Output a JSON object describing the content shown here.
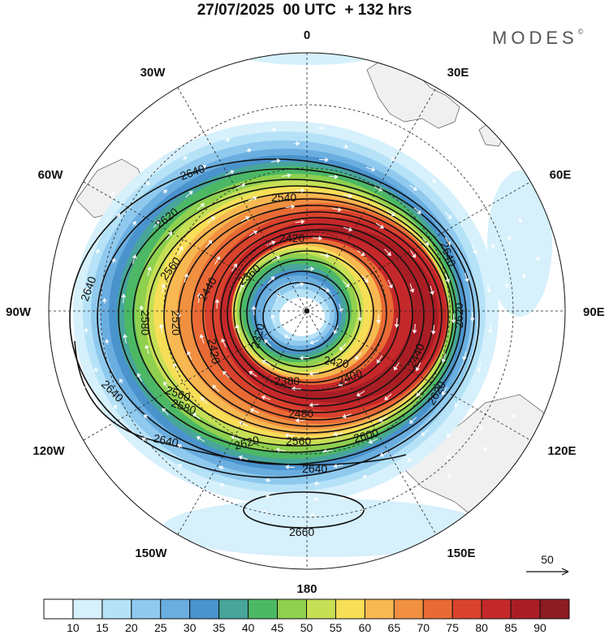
{
  "header": {
    "title": "27/07/2025  00 UTC  + 132 hrs",
    "brand": "MODES",
    "brand_mark": "©"
  },
  "map": {
    "projection": "south-polar-stereographic",
    "longitude_labels": {
      "top": "0",
      "top_right": "30E",
      "upper_right": "60E",
      "right": "90E",
      "lower_right": "120E",
      "bottom_right": "150E",
      "bottom": "180",
      "bottom_left": "150W",
      "lower_left": "120W",
      "left": "90W",
      "upper_left": "60W",
      "top_left": "30W"
    },
    "contour_labels": [
      "2640",
      "2620",
      "2560",
      "2540",
      "2420",
      "2360",
      "2440",
      "2320",
      "2420",
      "2580",
      "2520",
      "2560",
      "2640",
      "2420",
      "2640",
      "2620",
      "2400",
      "2440",
      "2380",
      "2480",
      "2560",
      "2600",
      "2620",
      "2640",
      "2580",
      "2620",
      "2640",
      "2660"
    ],
    "reference_vector": {
      "label": "50"
    }
  },
  "colorbar": {
    "labels": [
      "10",
      "15",
      "20",
      "25",
      "30",
      "35",
      "40",
      "45",
      "50",
      "55",
      "60",
      "65",
      "70",
      "75",
      "80",
      "85",
      "90"
    ],
    "colors": [
      "#ffffff",
      "#d6f0fc",
      "#b5e2f7",
      "#8fc9ee",
      "#6aaee0",
      "#4a93cd",
      "#47a59a",
      "#4cb865",
      "#8fd04f",
      "#c6df55",
      "#f6de57",
      "#f7b851",
      "#f09040",
      "#e96a35",
      "#d9432d",
      "#c5282a",
      "#a91e24",
      "#8d1b22"
    ]
  }
}
